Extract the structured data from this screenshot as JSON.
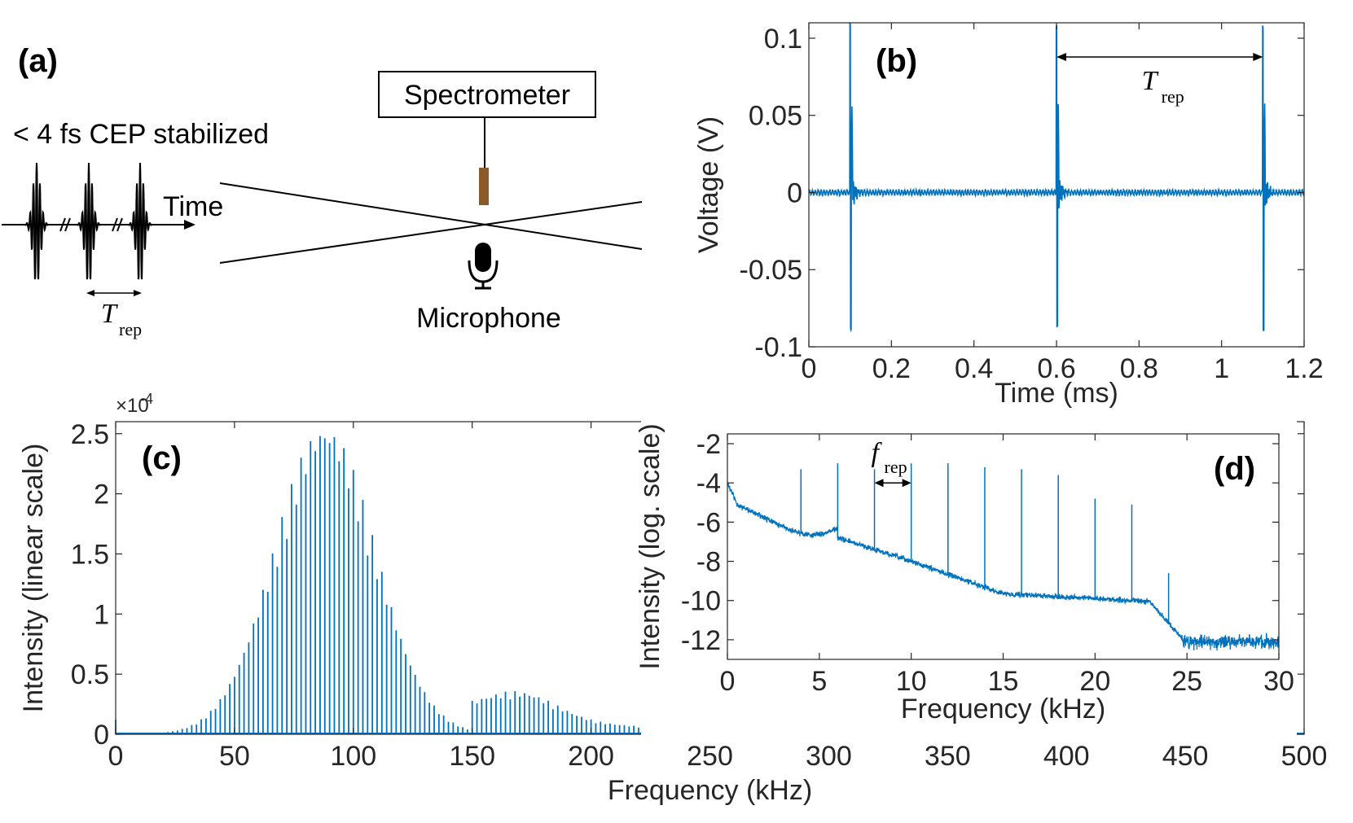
{
  "colors": {
    "series": "#0072BD",
    "axis": "#262626",
    "electrode": "#8B5A2B"
  },
  "panel_a": {
    "label": "(a)",
    "pulse_text": "< 4 fs CEP stabilized",
    "time_label": "Time",
    "trep_main": "T",
    "trep_sub": "rep",
    "spectrometer": "Spectrometer",
    "microphone": "Microphone",
    "mic_icon": "microphone-icon"
  },
  "chart_data": [
    {
      "id": "b",
      "type": "line",
      "panel_label": "(b)",
      "xlabel": "Time (ms)",
      "ylabel": "Voltage (V)",
      "xlim": [
        0,
        1.2
      ],
      "ylim": [
        -0.1,
        0.11
      ],
      "xticks": [
        0,
        0.2,
        0.4,
        0.6,
        0.8,
        1,
        1.2
      ],
      "xticklabels": [
        "0",
        "0.2",
        "0.4",
        "0.6",
        "0.8",
        "1",
        "1.2"
      ],
      "yticks": [
        -0.1,
        -0.05,
        0,
        0.05,
        0.1
      ],
      "yticklabels": [
        "-0.1",
        "-0.05",
        "0",
        "0.05",
        "0.1"
      ],
      "pulse_times": [
        0.1,
        0.6,
        1.1
      ],
      "pulse_peak": 0.108,
      "pulse_trough": -0.088,
      "secondary_peak": 0.048,
      "annotation": {
        "main": "T",
        "sub": "rep",
        "from": 0.6,
        "to": 1.1
      }
    },
    {
      "id": "c",
      "type": "bar",
      "panel_label": "(c)",
      "xlabel": "Frequency (kHz)",
      "ylabel": "Intensity (linear scale)",
      "multiplier": "×10",
      "multiplier_exp": "-4",
      "xlim": [
        0,
        500
      ],
      "ylim": [
        0,
        2.6
      ],
      "xticks": [
        0,
        50,
        100,
        150,
        200,
        250,
        300,
        350,
        400,
        450,
        500
      ],
      "xticklabels": [
        "0",
        "50",
        "100",
        "150",
        "200",
        "250",
        "300",
        "350",
        "400",
        "450",
        "500"
      ],
      "yticks": [
        0,
        0.5,
        1,
        1.5,
        2,
        2.5
      ],
      "yticklabels": [
        "0",
        "0.5",
        "1",
        "1.5",
        "2",
        "2.5"
      ],
      "line_spacing": 2,
      "main_peak_center": 88,
      "main_peak_height": 2.6,
      "secondary_peak_center": 170,
      "secondary_peak_height": 0.22,
      "cutoff": 148
    },
    {
      "id": "d",
      "type": "line",
      "panel_label": "(d)",
      "xlabel": "Frequency (kHz)",
      "ylabel": "Intensity (log. scale)",
      "xlim": [
        0,
        30
      ],
      "ylim": [
        -13,
        -1.5
      ],
      "xticks": [
        0,
        5,
        10,
        15,
        20,
        25,
        30
      ],
      "xticklabels": [
        "0",
        "5",
        "10",
        "15",
        "20",
        "25",
        "30"
      ],
      "yticks": [
        -12,
        -10,
        -8,
        -6,
        -4,
        -2
      ],
      "yticklabels": [
        "-12",
        "-10",
        "-8",
        "-6",
        "-4",
        "-2"
      ],
      "frep_lines": [
        {
          "x": 4,
          "y": -3.3
        },
        {
          "x": 6,
          "y": -3.0
        },
        {
          "x": 8,
          "y": -3.3
        },
        {
          "x": 10,
          "y": -3.0
        },
        {
          "x": 12,
          "y": -3.0
        },
        {
          "x": 14,
          "y": -3.2
        },
        {
          "x": 16,
          "y": -3.3
        },
        {
          "x": 18,
          "y": -3.6
        },
        {
          "x": 20,
          "y": -4.8
        },
        {
          "x": 22,
          "y": -5.1
        },
        {
          "x": 24,
          "y": -8.6
        }
      ],
      "annotation": {
        "main": "f",
        "sub": "rep",
        "from": 8,
        "to": 10
      }
    }
  ]
}
